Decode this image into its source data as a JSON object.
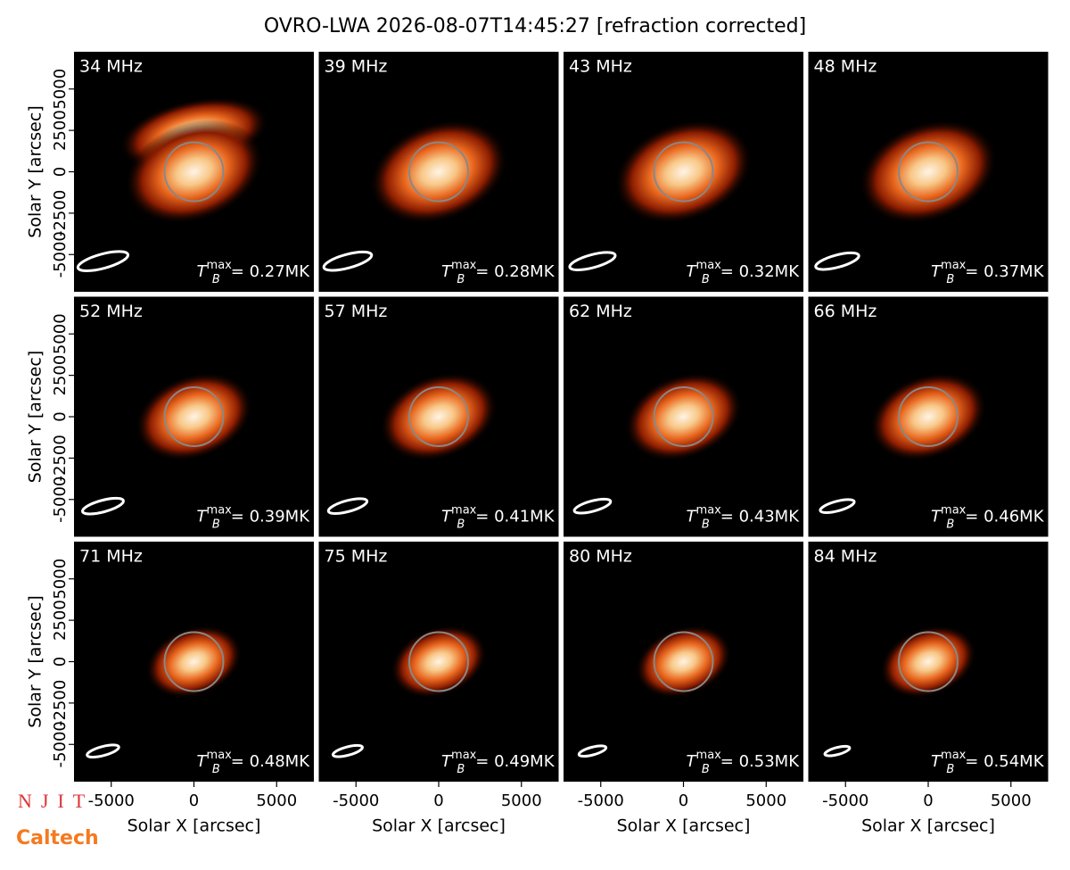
{
  "title": "OVRO-LWA 2026-08-07T14:45:27 [refraction corrected]",
  "logos": [
    "NJIT",
    "Caltech"
  ],
  "chart_data": [
    {
      "type": "image",
      "title": "34 MHz",
      "annotation": {
        "symbol": "T",
        "sub": "B",
        "sup": "max",
        "text": "= 0.27MK"
      },
      "xlim": [
        -7250,
        7250
      ],
      "ylim": [
        -7250,
        7250
      ],
      "ylabel": "Solar Y [arcsec]",
      "yticks": [
        -5000,
        -2500,
        0,
        2500,
        5000
      ]
    },
    {
      "type": "image",
      "title": "39 MHz",
      "annotation": {
        "symbol": "T",
        "sub": "B",
        "sup": "max",
        "text": "= 0.28MK"
      },
      "xlim": [
        -7250,
        7250
      ],
      "ylim": [
        -7250,
        7250
      ]
    },
    {
      "type": "image",
      "title": "43 MHz",
      "annotation": {
        "symbol": "T",
        "sub": "B",
        "sup": "max",
        "text": "= 0.32MK"
      },
      "xlim": [
        -7250,
        7250
      ],
      "ylim": [
        -7250,
        7250
      ]
    },
    {
      "type": "image",
      "title": "48 MHz",
      "annotation": {
        "symbol": "T",
        "sub": "B",
        "sup": "max",
        "text": "= 0.37MK"
      },
      "xlim": [
        -7250,
        7250
      ],
      "ylim": [
        -7250,
        7250
      ]
    },
    {
      "type": "image",
      "title": "52 MHz",
      "annotation": {
        "symbol": "T",
        "sub": "B",
        "sup": "max",
        "text": "= 0.39MK"
      },
      "xlim": [
        -7250,
        7250
      ],
      "ylim": [
        -7250,
        7250
      ],
      "ylabel": "Solar Y [arcsec]",
      "yticks": [
        -5000,
        -2500,
        0,
        2500,
        5000
      ]
    },
    {
      "type": "image",
      "title": "57 MHz",
      "annotation": {
        "symbol": "T",
        "sub": "B",
        "sup": "max",
        "text": "= 0.41MK"
      },
      "xlim": [
        -7250,
        7250
      ],
      "ylim": [
        -7250,
        7250
      ]
    },
    {
      "type": "image",
      "title": "62 MHz",
      "annotation": {
        "symbol": "T",
        "sub": "B",
        "sup": "max",
        "text": "= 0.43MK"
      },
      "xlim": [
        -7250,
        7250
      ],
      "ylim": [
        -7250,
        7250
      ]
    },
    {
      "type": "image",
      "title": "66 MHz",
      "annotation": {
        "symbol": "T",
        "sub": "B",
        "sup": "max",
        "text": "= 0.46MK"
      },
      "xlim": [
        -7250,
        7250
      ],
      "ylim": [
        -7250,
        7250
      ]
    },
    {
      "type": "image",
      "title": "71 MHz",
      "annotation": {
        "symbol": "T",
        "sub": "B",
        "sup": "max",
        "text": "= 0.48MK"
      },
      "xlim": [
        -7250,
        7250
      ],
      "ylim": [
        -7250,
        7250
      ],
      "ylabel": "Solar Y [arcsec]",
      "yticks": [
        -5000,
        -2500,
        0,
        2500,
        5000
      ],
      "xlabel": "Solar X [arcsec]",
      "xticks": [
        -5000,
        0,
        5000
      ]
    },
    {
      "type": "image",
      "title": "75 MHz",
      "annotation": {
        "symbol": "T",
        "sub": "B",
        "sup": "max",
        "text": "= 0.49MK"
      },
      "xlim": [
        -7250,
        7250
      ],
      "ylim": [
        -7250,
        7250
      ],
      "xlabel": "Solar X [arcsec]",
      "xticks": [
        -5000,
        0,
        5000
      ]
    },
    {
      "type": "image",
      "title": "80 MHz",
      "annotation": {
        "symbol": "T",
        "sub": "B",
        "sup": "max",
        "text": "= 0.53MK"
      },
      "xlim": [
        -7250,
        7250
      ],
      "ylim": [
        -7250,
        7250
      ],
      "xlabel": "Solar X [arcsec]",
      "xticks": [
        -5000,
        0,
        5000
      ]
    },
    {
      "type": "image",
      "title": "84 MHz",
      "annotation": {
        "symbol": "T",
        "sub": "B",
        "sup": "max",
        "text": "= 0.54MK"
      },
      "xlim": [
        -7250,
        7250
      ],
      "ylim": [
        -7250,
        7250
      ],
      "xlabel": "Solar X [arcsec]",
      "xticks": [
        -5000,
        0,
        5000
      ]
    }
  ]
}
